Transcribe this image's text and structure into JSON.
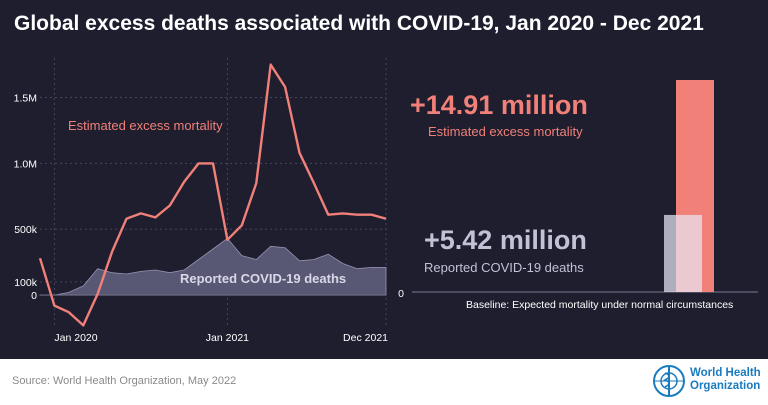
{
  "title": "Global excess deaths associated with COVID-19, Jan 2020 - Dec 2021",
  "source": "Source: World Health Organization, May 2022",
  "logo": {
    "line1": "World Health",
    "line2": "Organization"
  },
  "colors": {
    "background": "#1e1e2f",
    "excess": "#f08078",
    "reported": "#9b9ab8",
    "reported_fill": "#5d5c78",
    "big_reported_text": "#c2c1d6",
    "grid": "#45455c",
    "text": "#ffffff",
    "axis_text": "#ffffff"
  },
  "chart_data": [
    {
      "type": "line",
      "title": "",
      "xlabel": "",
      "ylabel": "",
      "x_tick_labels": [
        "Jan 2020",
        "Jan 2021",
        "Dec 2021"
      ],
      "y_tick_labels": [
        "0",
        "100k",
        "500k",
        "1.0M",
        "1.5M"
      ],
      "y_ticks": [
        0,
        100000,
        500000,
        1000000,
        1500000
      ],
      "ylim": [
        -250000,
        1800000
      ],
      "x": [
        "2019-12",
        "2020-01",
        "2020-02",
        "2020-03",
        "2020-04",
        "2020-05",
        "2020-06",
        "2020-07",
        "2020-08",
        "2020-09",
        "2020-10",
        "2020-11",
        "2020-12",
        "2021-01",
        "2021-02",
        "2021-03",
        "2021-04",
        "2021-05",
        "2021-06",
        "2021-07",
        "2021-08",
        "2021-09",
        "2021-10",
        "2021-11",
        "2021-12"
      ],
      "grid": true,
      "series": [
        {
          "name": "Estimated excess mortality",
          "style": "line",
          "values": [
            280000,
            -80000,
            -130000,
            -230000,
            10000,
            330000,
            580000,
            620000,
            590000,
            680000,
            860000,
            1000000,
            1000000,
            420000,
            530000,
            850000,
            1750000,
            1580000,
            1080000,
            850000,
            610000,
            620000,
            610000,
            610000,
            580000
          ]
        },
        {
          "name": "Reported COVID-19 deaths",
          "style": "area",
          "values": [
            0,
            0,
            20000,
            70000,
            200000,
            170000,
            160000,
            180000,
            190000,
            170000,
            190000,
            270000,
            350000,
            430000,
            300000,
            270000,
            370000,
            360000,
            260000,
            270000,
            310000,
            240000,
            200000,
            210000,
            210000
          ]
        }
      ],
      "annotations": [
        "Estimated excess mortality",
        "Reported COVID-19 deaths"
      ]
    },
    {
      "type": "bar",
      "categories": [
        "Reported COVID-19 deaths",
        "Estimated excess mortality"
      ],
      "values": [
        5.42,
        14.91
      ],
      "unit": "million",
      "y_tick_labels": [
        "0"
      ],
      "ylim": [
        0,
        16
      ],
      "labels": [
        {
          "value": "+14.91 million",
          "caption": "Estimated excess mortality"
        },
        {
          "value": "+5.42 million",
          "caption": "Reported COVID-19 deaths"
        }
      ],
      "baseline_label": "Baseline: Expected mortality under normal circumstances"
    }
  ]
}
